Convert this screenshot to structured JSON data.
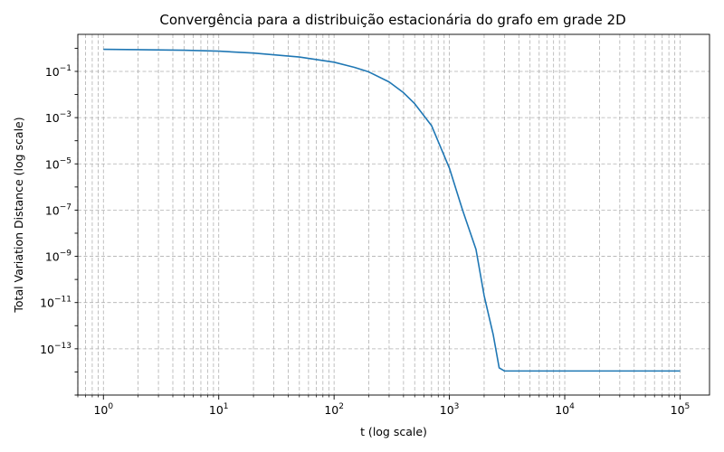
{
  "chart_data": {
    "type": "line",
    "title": "Convergência para a distribuição estacionária do grafo em grade 2D",
    "xlabel": "t (log scale)",
    "ylabel": "Total Variation Distance (log scale)",
    "xscale": "log",
    "yscale": "log",
    "xlim": [
      0.6,
      180000
    ],
    "ylim": [
      1e-15,
      4
    ],
    "x_ticks": [
      {
        "base": "10",
        "exp": "0",
        "value": 1
      },
      {
        "base": "10",
        "exp": "1",
        "value": 10
      },
      {
        "base": "10",
        "exp": "2",
        "value": 100
      },
      {
        "base": "10",
        "exp": "3",
        "value": 1000
      },
      {
        "base": "10",
        "exp": "4",
        "value": 10000
      },
      {
        "base": "10",
        "exp": "5",
        "value": 100000
      }
    ],
    "y_ticks": [
      {
        "base": "10",
        "exp": "−1",
        "value": 0.1
      },
      {
        "base": "10",
        "exp": "−3",
        "value": 0.001
      },
      {
        "base": "10",
        "exp": "−5",
        "value": 1e-05
      },
      {
        "base": "10",
        "exp": "−7",
        "value": 1e-07
      },
      {
        "base": "10",
        "exp": "−9",
        "value": 1e-09
      },
      {
        "base": "10",
        "exp": "−11",
        "value": 1e-11
      },
      {
        "base": "10",
        "exp": "−13",
        "value": 1e-13
      }
    ],
    "grid": true,
    "grid_minor": true,
    "series": [
      {
        "color": "#1f77b4",
        "x": [
          1,
          2,
          5,
          10,
          20,
          50,
          100,
          150,
          200,
          300,
          400,
          500,
          700,
          1000,
          1300,
          1700,
          2000,
          2400,
          2700,
          3000,
          10000,
          100000
        ],
        "y": [
          0.9,
          0.87,
          0.82,
          0.75,
          0.62,
          0.42,
          0.25,
          0.15,
          0.095,
          0.035,
          0.012,
          0.004,
          0.00045,
          6.5e-06,
          1e-07,
          2e-09,
          2e-11,
          4e-13,
          1.5e-14,
          1.1e-14,
          1.1e-14,
          1.1e-14
        ]
      }
    ]
  }
}
